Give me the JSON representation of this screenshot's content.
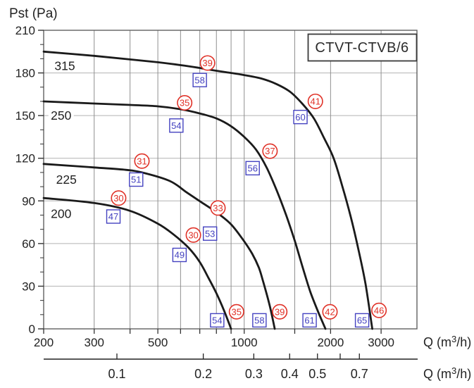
{
  "chart_data": {
    "type": "line",
    "title": "CTVT-CTVB/6",
    "ylabel": "Pst (Pa)",
    "xlabel": "Q (m³/h)",
    "xlabel2": "Q (m³/h)",
    "x_scale": "log",
    "xlim": [
      200,
      4000
    ],
    "ylim": [
      0,
      210
    ],
    "grid": true,
    "y_major_ticks": [
      0,
      30,
      60,
      90,
      120,
      150,
      180,
      210
    ],
    "y_minor_step": 10,
    "x_labeled_ticks": [
      200,
      300,
      500,
      1000,
      2000,
      3000
    ],
    "x_tick_positions": [
      200,
      300,
      400,
      500,
      600,
      700,
      800,
      900,
      1000,
      1500,
      2000,
      3000
    ],
    "x_gridline_positions": [
      300,
      400,
      500,
      600,
      700,
      800,
      900,
      1000,
      1500,
      2000,
      3000
    ],
    "x_axis2_ticks": [
      {
        "value": 0.1,
        "label": "0.1"
      },
      {
        "value": 0.2,
        "label": "0.2"
      },
      {
        "value": 0.3,
        "label": "0.3"
      },
      {
        "value": 0.4,
        "label": "0.4"
      },
      {
        "value": 0.5,
        "label": "0.5"
      },
      {
        "value": 0.6,
        "label": ""
      },
      {
        "value": 0.7,
        "label": "0.7"
      }
    ],
    "x_axis2_to_x_factor": 3600,
    "series": [
      {
        "name": "315",
        "label_q": 237,
        "label_pa": 185,
        "points": [
          [
            200,
            195
          ],
          [
            300,
            192
          ],
          [
            400,
            189.5
          ],
          [
            500,
            187.5
          ],
          [
            600,
            185.5
          ],
          [
            700,
            183.5
          ],
          [
            800,
            181.5
          ],
          [
            900,
            180
          ],
          [
            1000,
            178.5
          ],
          [
            1150,
            176
          ],
          [
            1300,
            172
          ],
          [
            1450,
            166.5
          ],
          [
            1600,
            158
          ],
          [
            1750,
            148
          ],
          [
            1900,
            134
          ],
          [
            2050,
            120
          ],
          [
            2200,
            100
          ],
          [
            2350,
            79
          ],
          [
            2500,
            56
          ],
          [
            2650,
            31
          ],
          [
            2795,
            0
          ]
        ]
      },
      {
        "name": "250",
        "label_q": 230,
        "label_pa": 150,
        "points": [
          [
            200,
            160
          ],
          [
            300,
            158.5
          ],
          [
            400,
            157.5
          ],
          [
            500,
            156.5
          ],
          [
            600,
            154.5
          ],
          [
            700,
            151.5
          ],
          [
            800,
            148
          ],
          [
            900,
            142.5
          ],
          [
            1000,
            135
          ],
          [
            1100,
            126
          ],
          [
            1200,
            113
          ],
          [
            1300,
            97
          ],
          [
            1400,
            80
          ],
          [
            1500,
            62
          ],
          [
            1600,
            43
          ],
          [
            1700,
            26
          ],
          [
            1810,
            12
          ],
          [
            1920,
            0
          ]
        ]
      },
      {
        "name": "225",
        "label_q": 240,
        "label_pa": 105,
        "points": [
          [
            200,
            116
          ],
          [
            300,
            113.5
          ],
          [
            380,
            112
          ],
          [
            440,
            110
          ],
          [
            550,
            104
          ],
          [
            630,
            96
          ],
          [
            710,
            89
          ],
          [
            800,
            82
          ],
          [
            895,
            74
          ],
          [
            980,
            64
          ],
          [
            1065,
            53
          ],
          [
            1125,
            43
          ],
          [
            1165,
            33
          ],
          [
            1225,
            17
          ],
          [
            1278,
            0
          ]
        ]
      },
      {
        "name": "200",
        "label_q": 230,
        "label_pa": 81,
        "points": [
          [
            200,
            92
          ],
          [
            300,
            88.5
          ],
          [
            400,
            83
          ],
          [
            500,
            74
          ],
          [
            570,
            66
          ],
          [
            640,
            57
          ],
          [
            700,
            47
          ],
          [
            750,
            36
          ],
          [
            800,
            25
          ],
          [
            850,
            13
          ],
          [
            900,
            0
          ]
        ]
      }
    ],
    "markers": {
      "red_circles": [
        {
          "value": "39",
          "q": 745,
          "pa": 187
        },
        {
          "value": "35",
          "q": 620,
          "pa": 159
        },
        {
          "value": "31",
          "q": 440,
          "pa": 118
        },
        {
          "value": "30",
          "q": 365,
          "pa": 92
        },
        {
          "value": "41",
          "q": 1770,
          "pa": 160
        },
        {
          "value": "37",
          "q": 1230,
          "pa": 125
        },
        {
          "value": "33",
          "q": 810,
          "pa": 85
        },
        {
          "value": "30",
          "q": 665,
          "pa": 66
        },
        {
          "value": "35",
          "q": 940,
          "pa": 12
        },
        {
          "value": "39",
          "q": 1330,
          "pa": 12
        },
        {
          "value": "42",
          "q": 1990,
          "pa": 12
        },
        {
          "value": "46",
          "q": 2950,
          "pa": 13
        }
      ],
      "blue_squares": [
        {
          "value": "58",
          "q": 700,
          "pa": 175
        },
        {
          "value": "54",
          "q": 580,
          "pa": 143
        },
        {
          "value": "51",
          "q": 420,
          "pa": 105
        },
        {
          "value": "47",
          "q": 350,
          "pa": 79
        },
        {
          "value": "60",
          "q": 1570,
          "pa": 149
        },
        {
          "value": "56",
          "q": 1070,
          "pa": 113
        },
        {
          "value": "53",
          "q": 760,
          "pa": 67
        },
        {
          "value": "49",
          "q": 595,
          "pa": 52
        },
        {
          "value": "54",
          "q": 805,
          "pa": 6
        },
        {
          "value": "58",
          "q": 1130,
          "pa": 6
        },
        {
          "value": "61",
          "q": 1690,
          "pa": 6
        },
        {
          "value": "65",
          "q": 2575,
          "pa": 6
        }
      ]
    },
    "colors": {
      "curve": "#1a1a1a",
      "red_marker": "#e03127",
      "blue_marker": "#4442c0",
      "grid_vertical": "#8f8f8f",
      "grid_horizontal": "#b2b2b2",
      "plot_border": "#606060",
      "tick": "#333333",
      "text": "#222222",
      "axis2_line": "#222222"
    }
  }
}
